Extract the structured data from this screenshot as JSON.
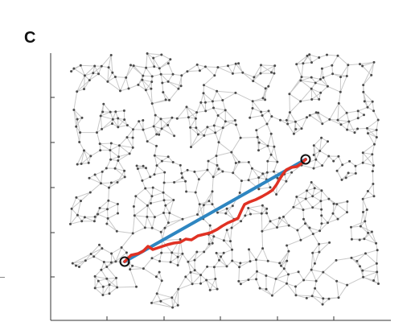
{
  "panel": {
    "label": "C"
  },
  "figure": {
    "type": "network-path-diagram",
    "edge_color": "#c8c8c8",
    "node_color": "#4a4a4a",
    "axis_color": "#333333",
    "straight_path_color": "#2e86c1",
    "network_path_color": "#e03123",
    "endpoint_marker": "open-circle",
    "y_axis_ticks": 6,
    "x_axis_ticks": 6
  }
}
